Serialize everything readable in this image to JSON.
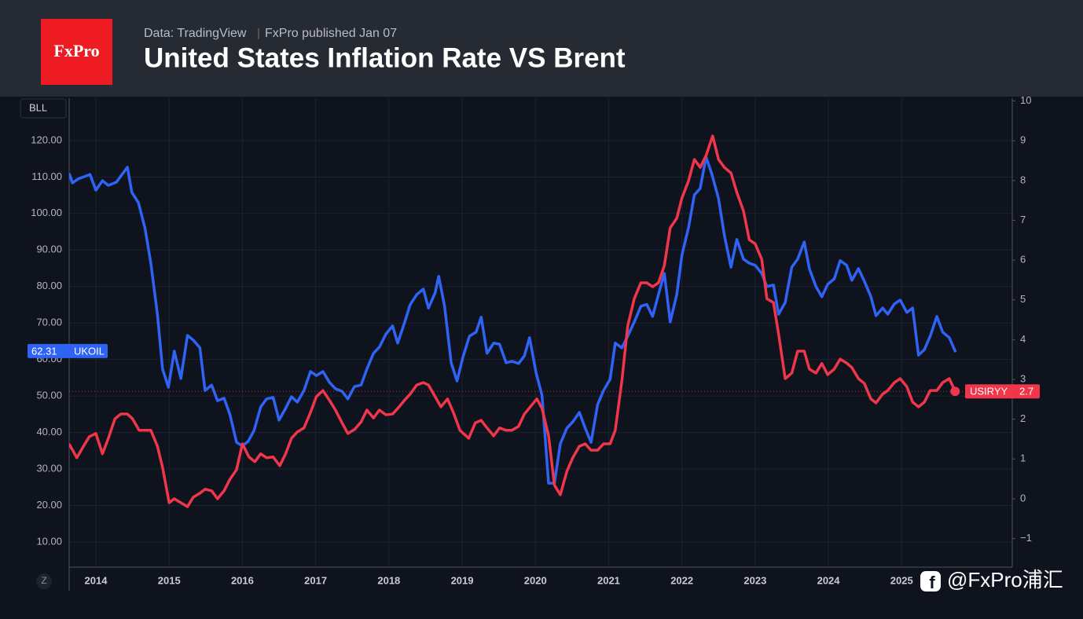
{
  "header": {
    "logo": "FxPro",
    "source": "Data: TradingView",
    "published": "FxPro published Jan 07"
  },
  "watermark": "@FxPro浦汇",
  "zoom_button": "Z",
  "chart_data": {
    "type": "line",
    "title": "United States Inflation Rate VS Brent",
    "ylabel": "BLL",
    "xlim": [
      2013.635,
      2026.51
    ],
    "xticks": [
      2014,
      2015,
      2016,
      2017,
      2018,
      2019,
      2020,
      2021,
      2022,
      2023,
      2024,
      2025
    ],
    "ylim": [
      3.1,
      131.6
    ],
    "yticks": [
      {
        "value": 10,
        "label": "10.00"
      },
      {
        "value": 20,
        "label": "20.00"
      },
      {
        "value": 30,
        "label": "30.00"
      },
      {
        "value": 40,
        "label": "40.00"
      },
      {
        "value": 50,
        "label": "50.00"
      },
      {
        "value": 60,
        "label": "60.00"
      },
      {
        "value": 70,
        "label": "70.00"
      },
      {
        "value": 80,
        "label": "80.00"
      },
      {
        "value": 90,
        "label": "90.00"
      },
      {
        "value": 100,
        "label": "100.00"
      },
      {
        "value": 110,
        "label": "110.00"
      },
      {
        "value": 120,
        "label": "120.00"
      }
    ],
    "y2lim": [
      -1.72,
      10.07
    ],
    "y2ticks": [
      {
        "value": -1,
        "label": "−1"
      },
      0,
      1,
      2,
      3,
      4,
      5,
      6,
      7,
      8,
      9,
      10
    ],
    "grid": true,
    "series": [
      {
        "name": "UKOIL",
        "color": "#2f63f5",
        "axis": "y",
        "x": [
          2013.64,
          2013.68,
          2013.76,
          2013.92,
          2014.0,
          2014.09,
          2014.17,
          2014.28,
          2014.43,
          2014.49,
          2014.58,
          2014.67,
          2014.75,
          2014.84,
          2014.91,
          2014.99,
          2015.07,
          2015.16,
          2015.25,
          2015.33,
          2015.42,
          2015.49,
          2015.58,
          2015.66,
          2015.75,
          2015.83,
          2015.92,
          2016.0,
          2016.08,
          2016.16,
          2016.25,
          2016.33,
          2016.42,
          2016.5,
          2016.59,
          2016.67,
          2016.75,
          2016.84,
          2016.93,
          2017.01,
          2017.1,
          2017.19,
          2017.27,
          2017.36,
          2017.44,
          2017.53,
          2017.62,
          2017.7,
          2017.79,
          2017.87,
          2017.96,
          2018.05,
          2018.12,
          2018.21,
          2018.29,
          2018.38,
          2018.47,
          2018.54,
          2018.63,
          2018.68,
          2018.76,
          2018.85,
          2018.93,
          2019.01,
          2019.1,
          2019.19,
          2019.26,
          2019.34,
          2019.43,
          2019.51,
          2019.6,
          2019.68,
          2019.77,
          2019.85,
          2019.92,
          2020.01,
          2020.09,
          2020.18,
          2020.26,
          2020.34,
          2020.43,
          2020.51,
          2020.6,
          2020.68,
          2020.76,
          2020.85,
          2020.93,
          2021.02,
          2021.09,
          2021.18,
          2021.26,
          2021.35,
          2021.44,
          2021.52,
          2021.6,
          2021.68,
          2021.76,
          2021.84,
          2021.93,
          2022.0,
          2022.09,
          2022.17,
          2022.25,
          2022.33,
          2022.41,
          2022.5,
          2022.58,
          2022.67,
          2022.75,
          2022.84,
          2022.92,
          2023.0,
          2023.09,
          2023.16,
          2023.25,
          2023.32,
          2023.41,
          2023.5,
          2023.58,
          2023.67,
          2023.74,
          2023.83,
          2023.91,
          2023.99,
          2024.08,
          2024.16,
          2024.25,
          2024.32,
          2024.41,
          2024.49,
          2024.58,
          2024.65,
          2024.74,
          2024.81,
          2024.9,
          2024.98,
          2025.07,
          2025.15,
          2025.23,
          2025.31,
          2025.39,
          2025.48,
          2025.56,
          2025.65,
          2025.73
        ],
        "values": [
          110.7,
          108.4,
          109.5,
          110.7,
          106.4,
          109,
          107.7,
          108.6,
          112.7,
          105.8,
          103,
          96,
          86.4,
          72.4,
          57.4,
          52.4,
          62.3,
          54.8,
          66.6,
          65.3,
          63.2,
          51.5,
          53,
          48.7,
          49.4,
          44.9,
          37.3,
          36.3,
          37.6,
          40.6,
          47,
          49.2,
          49.6,
          43.4,
          46.6,
          49.8,
          48.3,
          51.5,
          56.7,
          55.6,
          56.7,
          53.7,
          52,
          51.3,
          49.2,
          52.6,
          53,
          57.4,
          61.7,
          63.4,
          67,
          69.2,
          64.5,
          69.9,
          75,
          77.8,
          79.3,
          74.1,
          78.2,
          82.8,
          74.6,
          59.1,
          54.1,
          60.6,
          66.4,
          67.5,
          71.6,
          61.7,
          64.5,
          64.2,
          59.1,
          59.5,
          58.9,
          61,
          66,
          56.3,
          50.2,
          26.1,
          26.1,
          36.9,
          41.2,
          42.9,
          45.5,
          41.2,
          37.3,
          47.7,
          51.5,
          54.6,
          64.5,
          63.2,
          66.4,
          70.3,
          74.6,
          75.1,
          71.8,
          77.8,
          83.6,
          70.3,
          77.8,
          88.6,
          96.1,
          105.1,
          106.9,
          115.5,
          110.7,
          104.1,
          94,
          85.3,
          92.9,
          87.5,
          86.4,
          85.8,
          83.6,
          80,
          80.4,
          72.4,
          75.6,
          85.3,
          87.5,
          92.2,
          84.9,
          80,
          77.2,
          80.6,
          82.1,
          87.1,
          85.8,
          81.7,
          84.9,
          81.5,
          77.2,
          72,
          74.1,
          72.4,
          75.2,
          76.3,
          72.9,
          74.1,
          61.2,
          62.7,
          66.4,
          71.8,
          67.5,
          66,
          62.31
        ]
      },
      {
        "name": "USIRYY",
        "color": "#f0364a",
        "axis": "y2",
        "x": [
          2013.64,
          2013.74,
          2013.83,
          2013.91,
          2014.0,
          2014.09,
          2014.17,
          2014.26,
          2014.34,
          2014.43,
          2014.5,
          2014.59,
          2014.67,
          2014.75,
          2014.84,
          2014.91,
          2015.0,
          2015.07,
          2015.16,
          2015.25,
          2015.33,
          2015.42,
          2015.49,
          2015.58,
          2015.66,
          2015.75,
          2015.83,
          2015.92,
          2016.0,
          2016.09,
          2016.17,
          2016.25,
          2016.33,
          2016.42,
          2016.51,
          2016.59,
          2016.67,
          2016.75,
          2016.84,
          2016.93,
          2017.01,
          2017.1,
          2017.19,
          2017.27,
          2017.36,
          2017.44,
          2017.53,
          2017.62,
          2017.7,
          2017.79,
          2017.87,
          2017.96,
          2018.05,
          2018.12,
          2018.21,
          2018.29,
          2018.38,
          2018.47,
          2018.54,
          2018.63,
          2018.71,
          2018.8,
          2018.88,
          2018.97,
          2019.09,
          2019.18,
          2019.26,
          2019.34,
          2019.43,
          2019.51,
          2019.6,
          2019.68,
          2019.77,
          2019.85,
          2019.93,
          2020.02,
          2020.09,
          2020.18,
          2020.26,
          2020.34,
          2020.43,
          2020.51,
          2020.6,
          2020.68,
          2020.76,
          2020.85,
          2020.93,
          2021.02,
          2021.09,
          2021.18,
          2021.26,
          2021.35,
          2021.44,
          2021.52,
          2021.6,
          2021.68,
          2021.76,
          2021.84,
          2021.93,
          2022.0,
          2022.09,
          2022.17,
          2022.25,
          2022.33,
          2022.42,
          2022.5,
          2022.58,
          2022.67,
          2022.75,
          2022.84,
          2022.92,
          2023.0,
          2023.09,
          2023.16,
          2023.25,
          2023.32,
          2023.41,
          2023.5,
          2023.58,
          2023.67,
          2023.74,
          2023.83,
          2023.91,
          2023.99,
          2024.08,
          2024.16,
          2024.25,
          2024.32,
          2024.41,
          2024.49,
          2024.58,
          2024.65,
          2024.74,
          2024.81,
          2024.9,
          2024.98,
          2025.07,
          2025.15,
          2025.23,
          2025.31,
          2025.39,
          2025.48,
          2025.56,
          2025.65,
          2025.73
        ],
        "values": [
          1.36,
          1.03,
          1.32,
          1.56,
          1.64,
          1.13,
          1.52,
          2.01,
          2.13,
          2.13,
          2.01,
          1.72,
          1.72,
          1.72,
          1.32,
          0.79,
          -0.1,
          0,
          -0.1,
          -0.2,
          0.04,
          0.14,
          0.24,
          0.2,
          0,
          0.2,
          0.49,
          0.73,
          1.38,
          1.05,
          0.93,
          1.13,
          1.03,
          1.05,
          0.83,
          1.13,
          1.52,
          1.68,
          1.78,
          2.17,
          2.57,
          2.72,
          2.47,
          2.23,
          1.91,
          1.64,
          1.74,
          1.93,
          2.23,
          2.03,
          2.23,
          2.11,
          2.13,
          2.27,
          2.47,
          2.63,
          2.86,
          2.92,
          2.86,
          2.57,
          2.31,
          2.51,
          2.17,
          1.72,
          1.52,
          1.91,
          1.97,
          1.78,
          1.58,
          1.78,
          1.72,
          1.72,
          1.82,
          2.13,
          2.31,
          2.51,
          2.27,
          1.58,
          0.34,
          0.1,
          0.69,
          1.03,
          1.32,
          1.38,
          1.22,
          1.22,
          1.38,
          1.38,
          1.72,
          2.96,
          4.34,
          5.03,
          5.43,
          5.43,
          5.33,
          5.43,
          5.86,
          6.81,
          7.05,
          7.56,
          7.99,
          8.53,
          8.33,
          8.63,
          9.12,
          8.53,
          8.33,
          8.19,
          7.7,
          7.24,
          6.51,
          6.41,
          6.02,
          5.03,
          4.93,
          4.14,
          3.02,
          3.16,
          3.71,
          3.71,
          3.26,
          3.16,
          3.4,
          3.12,
          3.26,
          3.51,
          3.41,
          3.3,
          3.02,
          2.9,
          2.51,
          2.41,
          2.63,
          2.72,
          2.92,
          3.02,
          2.82,
          2.43,
          2.31,
          2.43,
          2.72,
          2.72,
          2.92,
          3.02,
          2.7
        ]
      }
    ]
  }
}
